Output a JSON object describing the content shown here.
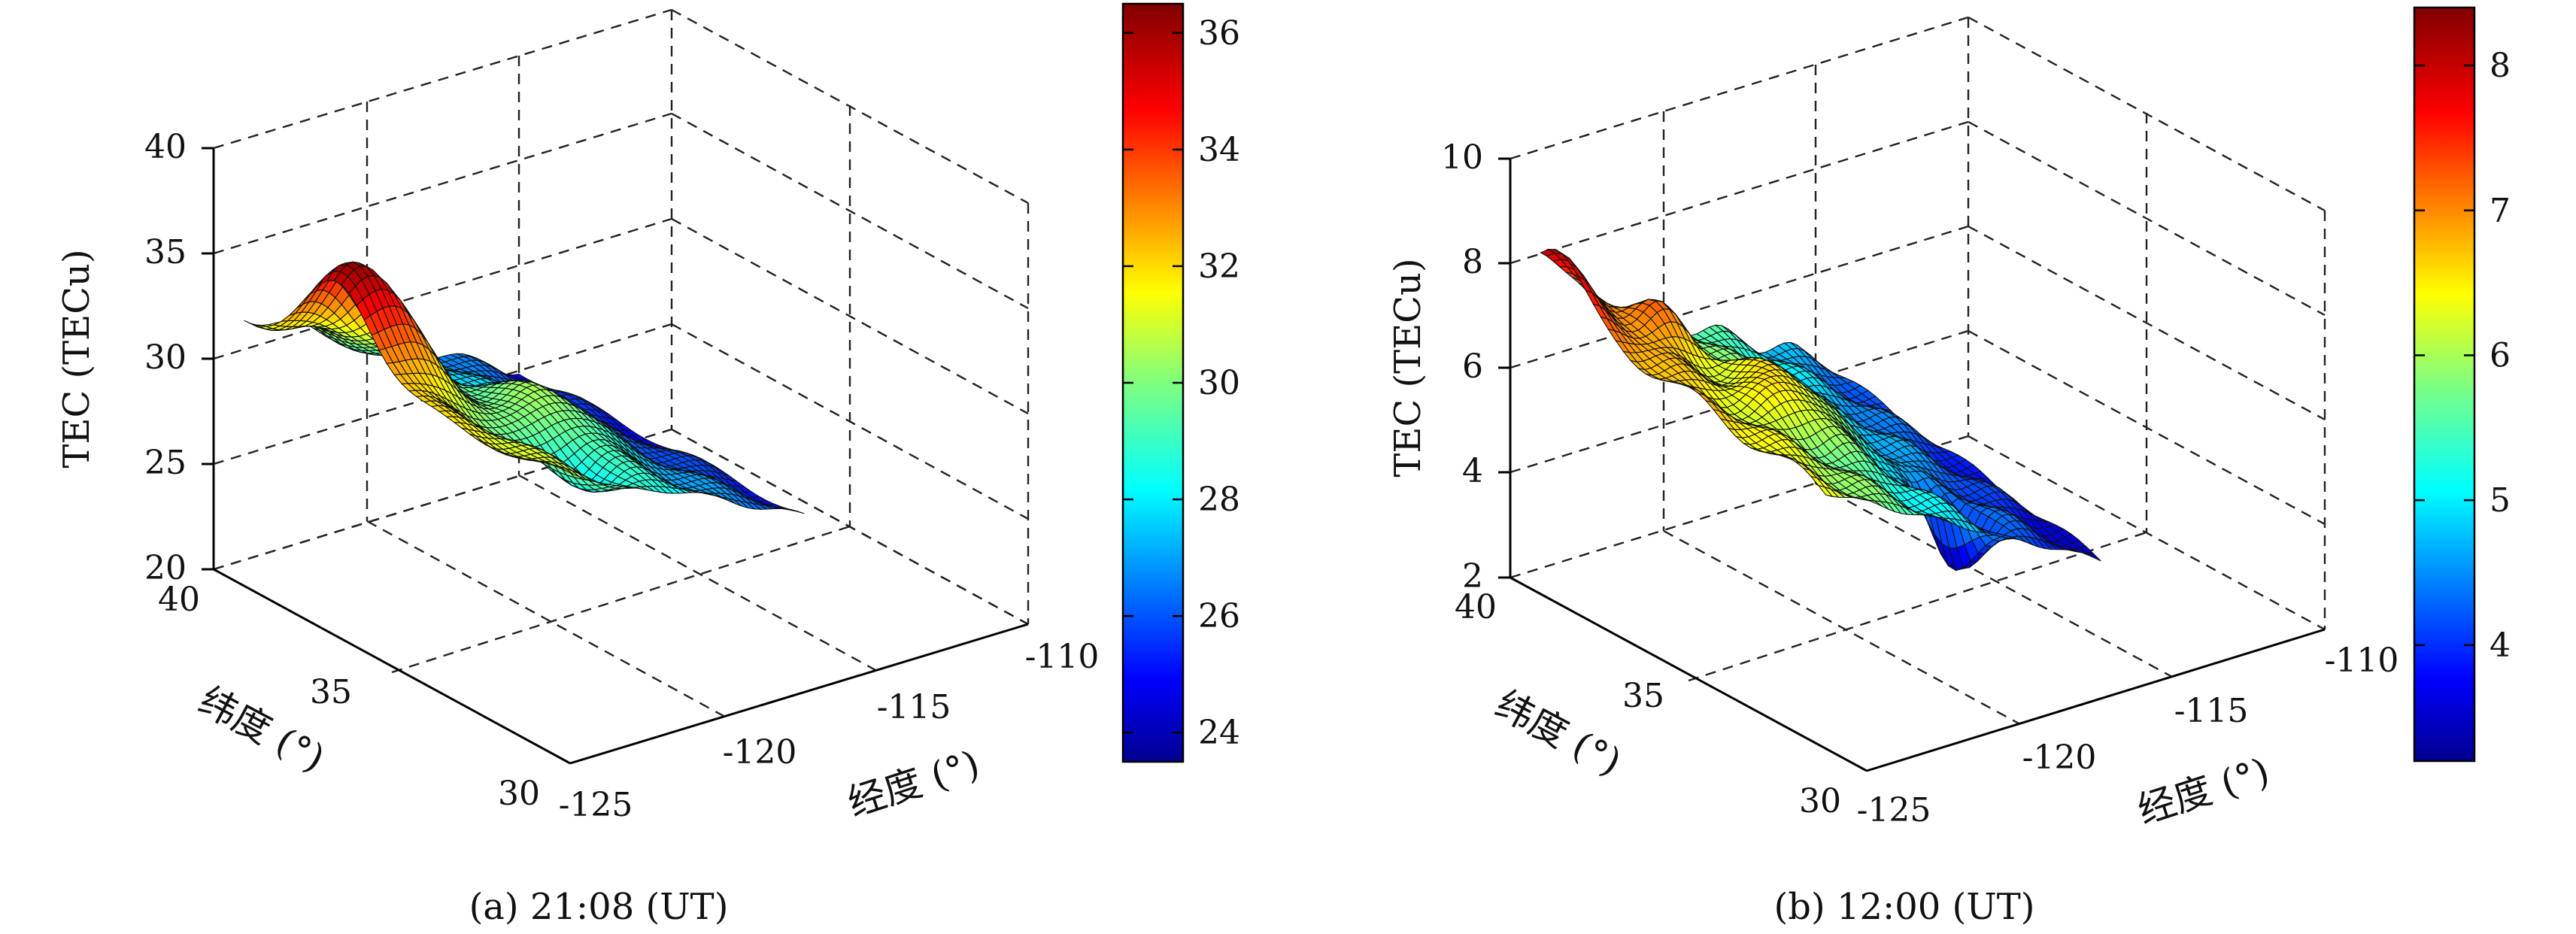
{
  "figure": {
    "panels": [
      {
        "caption": "(a) 21:08 (UT)"
      },
      {
        "caption": "(b) 12:00 (UT)"
      }
    ]
  },
  "chart_data": [
    {
      "type": "surface3d",
      "caption": "(a) 21:08 (UT)",
      "xlabel": "经度 (°)",
      "ylabel": "纬度 (°)",
      "zlabel": "TEC (TECu)",
      "xlim": [
        -125,
        -110
      ],
      "ylim": [
        30,
        40
      ],
      "zlim": [
        20,
        40
      ],
      "x_ticks": [
        "-125",
        "-120",
        "-115",
        "-110"
      ],
      "y_ticks": [
        "30",
        "35",
        "40"
      ],
      "z_ticks": [
        "20",
        "25",
        "30",
        "35",
        "40"
      ],
      "grid": true,
      "colormap": "jet",
      "colorbar": {
        "range": [
          23.5,
          36.5
        ],
        "ticks": [
          "24",
          "26",
          "28",
          "30",
          "32",
          "34",
          "36"
        ]
      },
      "surface": {
        "x_extent": [
          -124,
          -115
        ],
        "y_extent": [
          32,
          40
        ],
        "ridge_max": 36.5,
        "ridge_location": [
          -123,
          37.5
        ],
        "southeast_min": 23.5,
        "notes": "TEC decreases from north-west (high, ~30-36) toward south-east (~24)"
      }
    },
    {
      "type": "surface3d",
      "caption": "(b) 12:00 (UT)",
      "xlabel": "经度 (°)",
      "ylabel": "纬度 (°)",
      "zlabel": "TEC (TECu)",
      "xlim": [
        -125,
        -110
      ],
      "ylim": [
        30,
        40
      ],
      "zlim": [
        2,
        10
      ],
      "x_ticks": [
        "-125",
        "-120",
        "-115",
        "-110"
      ],
      "y_ticks": [
        "30",
        "35",
        "40"
      ],
      "z_ticks": [
        "2",
        "4",
        "6",
        "8",
        "10"
      ],
      "grid": true,
      "colormap": "jet",
      "colorbar": {
        "range": [
          3.2,
          8.4
        ],
        "ticks": [
          "4",
          "5",
          "6",
          "7",
          "8"
        ]
      },
      "surface": {
        "x_extent": [
          -124,
          -115
        ],
        "y_extent": [
          32,
          40
        ],
        "ridge_max": 8.4,
        "ridge_location": [
          -124,
          40
        ],
        "southeast_min": 3.2,
        "notes": "TEC highest in north-west corner (~8), falling to ~3.5 toward the south-east with a sharp dip near -118"
      }
    }
  ]
}
